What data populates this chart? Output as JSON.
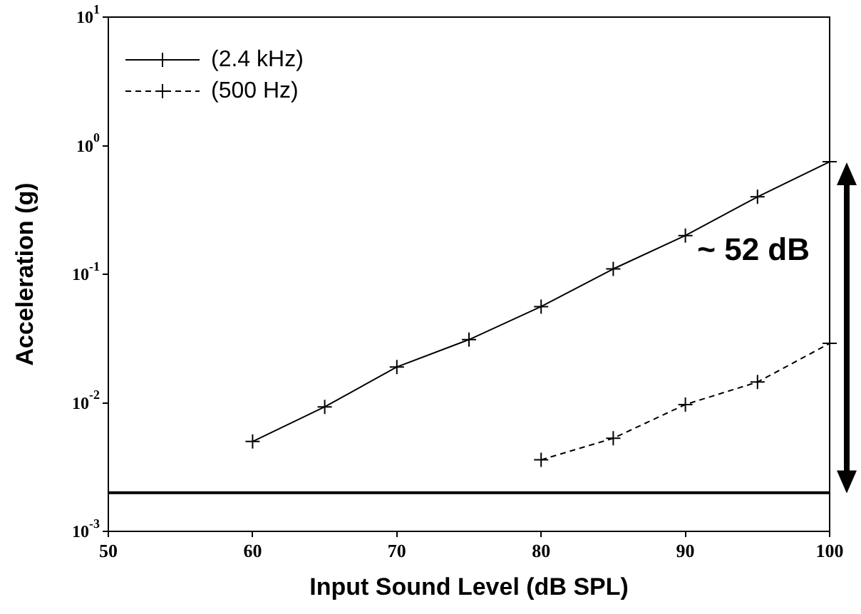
{
  "chart_data": {
    "type": "line",
    "xlabel": "Input Sound Level (dB SPL)",
    "ylabel": "Acceleration (g)",
    "x": [
      60,
      65,
      70,
      75,
      80,
      85,
      90,
      95,
      100
    ],
    "series": [
      {
        "name": "(2.4 kHz)",
        "color": "#000000",
        "line_style": "solid",
        "values": [
          0.005,
          0.0093,
          0.019,
          0.031,
          0.056,
          0.11,
          0.2,
          0.4,
          0.75
        ]
      },
      {
        "name": "(500 Hz)",
        "color": "#000000",
        "line_style": "dashed",
        "x": [
          80,
          85,
          90,
          95,
          100
        ],
        "values": [
          0.0036,
          0.0053,
          0.0097,
          0.0145,
          0.029
        ]
      }
    ],
    "log": "y",
    "xlim": [
      50,
      100
    ],
    "xticks": [
      50,
      60,
      70,
      80,
      90,
      100
    ],
    "ylim": [
      0.001,
      10
    ],
    "yticks": [
      {
        "value": 0.001,
        "label": "10$^{-3}$"
      },
      {
        "value": 0.01,
        "label": "10$^{-2}$"
      },
      {
        "value": 0.1,
        "label": "10$^{-1}$"
      },
      {
        "value": 1,
        "label": "10$^{0}$"
      },
      {
        "value": 10,
        "label": "10$^{1}$"
      }
    ],
    "ref_lines": [
      {
        "axis": "y",
        "value": 0.002,
        "color": "#000000",
        "line_style": "solid"
      }
    ],
    "annotations": [
      "~ 52 dB"
    ],
    "grid": false,
    "legend": "top left",
    "marker": "cross"
  }
}
